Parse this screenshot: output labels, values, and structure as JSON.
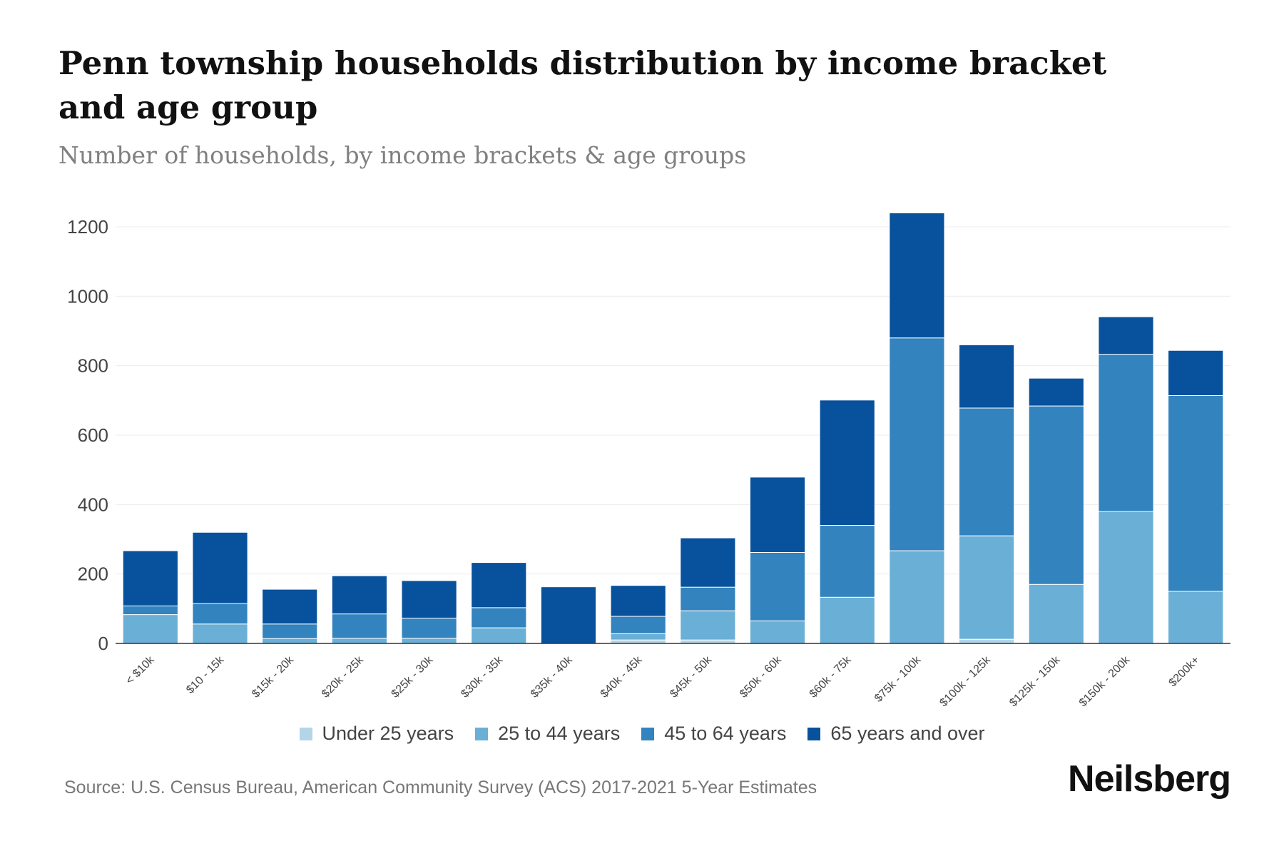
{
  "header": {
    "title": "Penn township households distribution by income bracket and age group",
    "subtitle": "Number of households, by income brackets & age groups"
  },
  "footer": {
    "source": "Source: U.S. Census Bureau, American Community Survey (ACS) 2017-2021 5-Year Estimates",
    "brand": "Neilsberg"
  },
  "chart_data": {
    "type": "bar",
    "stacked": true,
    "title": "Penn township households distribution by income bracket and age group",
    "subtitle": "Number of households, by income brackets & age groups",
    "xlabel": "",
    "ylabel": "",
    "ylim": [
      0,
      1240
    ],
    "yticks": [
      0,
      200,
      400,
      600,
      800,
      1000,
      1200
    ],
    "grid": true,
    "legend_position": "bottom",
    "categories": [
      "< $10k",
      "$10 - 15k",
      "$15k - 20k",
      "$20k - 25k",
      "$25k - 30k",
      "$30k - 35k",
      "$35k - 40k",
      "$40k - 45k",
      "$45k - 50k",
      "$50k - 60k",
      "$60k - 75k",
      "$75k - 100k",
      "$100k - 125k",
      "$125k - 150k",
      "$150k - 200k",
      "$200k+"
    ],
    "series": [
      {
        "name": "Under 25 years",
        "color": "#b3d5e8",
        "values": [
          0,
          0,
          0,
          0,
          0,
          0,
          0,
          10,
          10,
          0,
          0,
          0,
          12,
          0,
          0,
          0
        ]
      },
      {
        "name": "25 to 44 years",
        "color": "#6aafd6",
        "values": [
          83,
          56,
          14,
          15,
          15,
          45,
          0,
          18,
          84,
          65,
          133,
          267,
          298,
          170,
          380,
          150
        ]
      },
      {
        "name": "45 to 64 years",
        "color": "#3383be",
        "values": [
          25,
          59,
          42,
          70,
          58,
          58,
          0,
          50,
          68,
          197,
          207,
          613,
          368,
          514,
          453,
          564
        ]
      },
      {
        "name": "65 years and over",
        "color": "#08519c",
        "values": [
          159,
          205,
          100,
          110,
          108,
          130,
          163,
          89,
          142,
          217,
          361,
          360,
          182,
          80,
          108,
          130
        ]
      }
    ]
  }
}
